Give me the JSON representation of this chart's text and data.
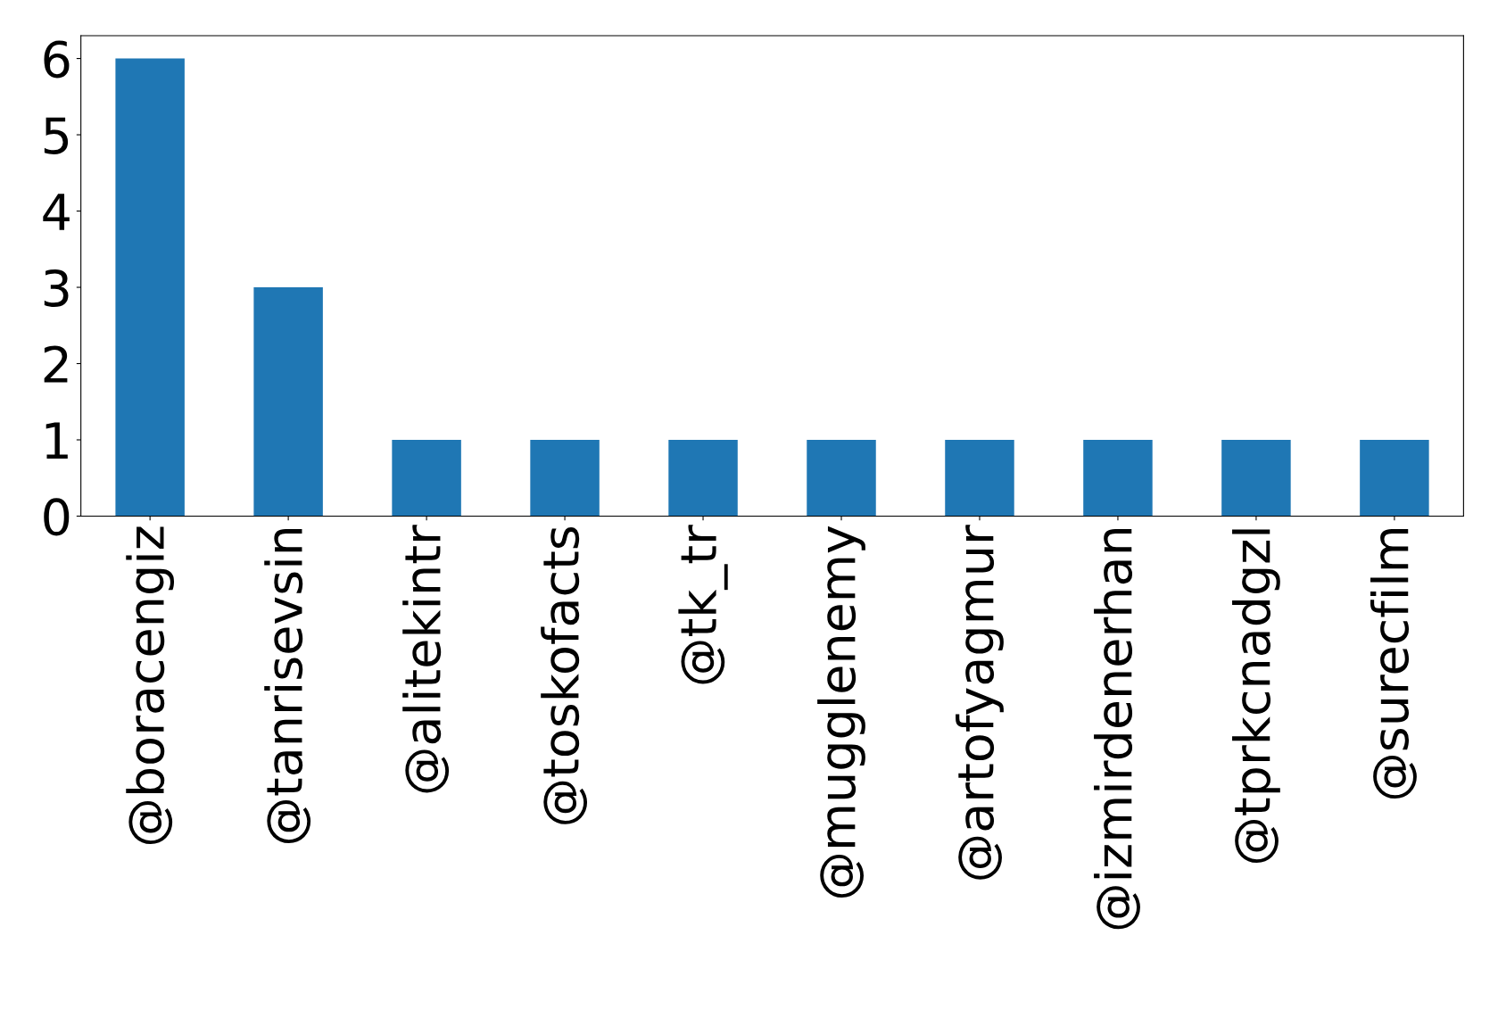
{
  "chart_data": {
    "type": "bar",
    "categories": [
      "@boracengiz",
      "@tanrisevsin",
      "@alitekintr",
      "@toskofacts",
      "@tk_tr",
      "@mugglenemy",
      "@artofyagmur",
      "@izmirdenerhan",
      "@tprkcnadgzl",
      "@surecfilm"
    ],
    "values": [
      6,
      3,
      1,
      1,
      1,
      1,
      1,
      1,
      1,
      1
    ],
    "color": "#1f77b4",
    "ylim": [
      0,
      6.3
    ],
    "yticks": [
      0,
      1,
      2,
      3,
      4,
      5,
      6
    ],
    "grid": false,
    "legend": false
  }
}
